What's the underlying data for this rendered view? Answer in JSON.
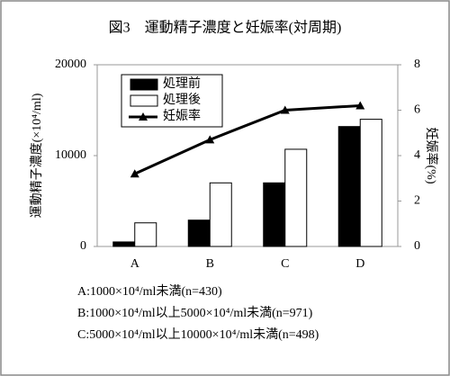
{
  "chart_data": {
    "type": "bar",
    "title": "図3　運動精子濃度と妊娠率(対周期)",
    "y_label": "運動精子濃度(×10⁴/ml)",
    "y2_label": "妊娠率(%)",
    "categories": [
      "A",
      "B",
      "C",
      "D"
    ],
    "series": [
      {
        "name": "処理前",
        "color": "#000000",
        "values": [
          500,
          2900,
          7000,
          13200
        ]
      },
      {
        "name": "処理後",
        "color": "#ffffff",
        "values": [
          2600,
          7000,
          10700,
          14000
        ]
      },
      {
        "name": "妊娠率",
        "type": "line",
        "axis": "y2",
        "color": "#000000",
        "values": [
          3.2,
          4.7,
          6.0,
          6.2
        ]
      }
    ],
    "ylim": [
      0,
      20000
    ],
    "yticks": [
      0,
      10000,
      20000
    ],
    "y2lim": [
      0,
      8
    ],
    "y2ticks": [
      0,
      2,
      4,
      6,
      8
    ],
    "annotations": [
      "A:1000×10⁴/ml未満(n=430)",
      "B:1000×10⁴/ml以上5000×10⁴/ml未満(n=971)",
      "C:5000×10⁴/ml以上10000×10⁴/ml未満(n=498)"
    ]
  }
}
